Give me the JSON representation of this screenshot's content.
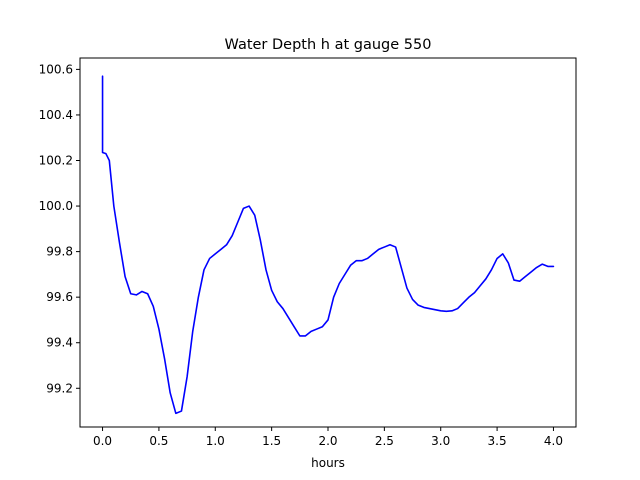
{
  "chart_data": {
    "type": "line",
    "title": "Water Depth h at gauge 550",
    "xlabel": "hours",
    "ylabel": "",
    "xlim": [
      -0.2,
      4.2
    ],
    "ylim": [
      99.03,
      100.65
    ],
    "xticks": [
      0.0,
      0.5,
      1.0,
      1.5,
      2.0,
      2.5,
      3.0,
      3.5,
      4.0
    ],
    "xtick_labels": [
      "0.0",
      "0.5",
      "1.0",
      "1.5",
      "2.0",
      "2.5",
      "3.0",
      "3.5",
      "4.0"
    ],
    "yticks": [
      99.2,
      99.4,
      99.6,
      99.8,
      100.0,
      100.2,
      100.4,
      100.6
    ],
    "ytick_labels": [
      "99.2",
      "99.4",
      "99.6",
      "99.8",
      "100.0",
      "100.2",
      "100.4",
      "100.6"
    ],
    "grid": false,
    "series": [
      {
        "color": "#0000ff",
        "x": [
          0.0,
          0.0,
          0.03,
          0.06,
          0.1,
          0.15,
          0.2,
          0.25,
          0.3,
          0.35,
          0.4,
          0.45,
          0.5,
          0.55,
          0.6,
          0.65,
          0.7,
          0.75,
          0.8,
          0.85,
          0.9,
          0.95,
          1.0,
          1.05,
          1.1,
          1.15,
          1.2,
          1.25,
          1.3,
          1.35,
          1.4,
          1.45,
          1.5,
          1.55,
          1.6,
          1.65,
          1.7,
          1.75,
          1.8,
          1.85,
          1.9,
          1.95,
          2.0,
          2.05,
          2.1,
          2.15,
          2.2,
          2.25,
          2.3,
          2.35,
          2.4,
          2.45,
          2.5,
          2.55,
          2.6,
          2.65,
          2.7,
          2.75,
          2.8,
          2.85,
          2.9,
          2.95,
          3.0,
          3.05,
          3.1,
          3.15,
          3.2,
          3.25,
          3.3,
          3.35,
          3.4,
          3.45,
          3.5,
          3.55,
          3.6,
          3.65,
          3.7,
          3.75,
          3.8,
          3.85,
          3.9,
          3.95,
          4.0
        ],
        "y": [
          100.57,
          100.235,
          100.23,
          100.2,
          100.0,
          99.84,
          99.69,
          99.615,
          99.61,
          99.625,
          99.615,
          99.56,
          99.46,
          99.33,
          99.18,
          99.09,
          99.1,
          99.25,
          99.45,
          99.6,
          99.72,
          99.77,
          99.79,
          99.81,
          99.83,
          99.87,
          99.93,
          99.99,
          100.0,
          99.96,
          99.85,
          99.72,
          99.63,
          99.58,
          99.55,
          99.51,
          99.47,
          99.43,
          99.43,
          99.45,
          99.46,
          99.47,
          99.5,
          99.6,
          99.66,
          99.7,
          99.74,
          99.76,
          99.76,
          99.77,
          99.79,
          99.81,
          99.82,
          99.83,
          99.82,
          99.73,
          99.64,
          99.59,
          99.565,
          99.555,
          99.55,
          99.545,
          99.54,
          99.538,
          99.54,
          99.55,
          99.575,
          99.6,
          99.62,
          99.65,
          99.68,
          99.72,
          99.77,
          99.79,
          99.75,
          99.675,
          99.67,
          99.69,
          99.71,
          99.73,
          99.745,
          99.735,
          99.735
        ]
      }
    ]
  }
}
